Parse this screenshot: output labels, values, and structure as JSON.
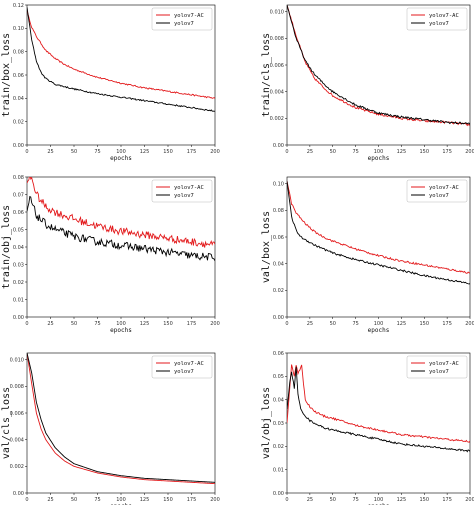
{
  "chart_data": [
    {
      "type": "line",
      "ylabel": "train/box_loss",
      "xlabel": "epochs",
      "xlim": [
        0,
        200
      ],
      "ylim": [
        0,
        0.12
      ],
      "xticks": [
        "0",
        "25",
        "50",
        "75",
        "100",
        "125",
        "150",
        "175",
        "200"
      ],
      "yticks": [
        "0.00",
        "0.02",
        "0.04",
        "0.06",
        "0.08",
        "0.10",
        "0.12"
      ],
      "legend_position": "top-right",
      "noise": 0.0006,
      "series": [
        {
          "name": "yolov7-AC",
          "color": "#e31a1c",
          "x": [
            0,
            5,
            10,
            20,
            30,
            40,
            50,
            75,
            100,
            125,
            150,
            175,
            200
          ],
          "y": [
            0.115,
            0.101,
            0.093,
            0.081,
            0.074,
            0.069,
            0.065,
            0.058,
            0.053,
            0.049,
            0.046,
            0.043,
            0.04
          ]
        },
        {
          "name": "yolov7",
          "color": "#000000",
          "x": [
            0,
            5,
            10,
            15,
            20,
            30,
            40,
            50,
            75,
            100,
            125,
            150,
            175,
            200
          ],
          "y": [
            0.118,
            0.09,
            0.072,
            0.062,
            0.057,
            0.052,
            0.05,
            0.048,
            0.044,
            0.041,
            0.038,
            0.035,
            0.032,
            0.029
          ]
        }
      ]
    },
    {
      "type": "line",
      "ylabel": "train/cls_loss",
      "xlabel": "epochs",
      "xlim": [
        0,
        200
      ],
      "ylim": [
        0,
        0.0105
      ],
      "xticks": [
        "0",
        "25",
        "50",
        "75",
        "100",
        "125",
        "150",
        "175",
        "200"
      ],
      "yticks": [
        "0.00",
        "0.002",
        "0.004",
        "0.006",
        "0.008",
        "0.010"
      ],
      "legend_position": "top-right",
      "noise": 8e-05,
      "series": [
        {
          "name": "yolov7-AC",
          "color": "#e31a1c",
          "x": [
            0,
            10,
            20,
            30,
            40,
            50,
            75,
            100,
            125,
            150,
            175,
            200
          ],
          "y": [
            0.0105,
            0.0082,
            0.0062,
            0.005,
            0.0043,
            0.0037,
            0.0028,
            0.0023,
            0.002,
            0.0018,
            0.0017,
            0.0015
          ]
        },
        {
          "name": "yolov7",
          "color": "#000000",
          "x": [
            0,
            10,
            20,
            30,
            40,
            50,
            75,
            100,
            125,
            150,
            175,
            200
          ],
          "y": [
            0.0105,
            0.008,
            0.0063,
            0.0053,
            0.0046,
            0.004,
            0.003,
            0.0024,
            0.0021,
            0.0019,
            0.0017,
            0.0016
          ]
        }
      ]
    },
    {
      "type": "line",
      "ylabel": "train/obj_loss",
      "xlabel": "epochs",
      "xlim": [
        0,
        200
      ],
      "ylim": [
        0,
        0.08
      ],
      "xticks": [
        "0",
        "25",
        "50",
        "75",
        "100",
        "125",
        "150",
        "175",
        "200"
      ],
      "yticks": [
        "0.00",
        "0.01",
        "0.02",
        "0.03",
        "0.04",
        "0.05",
        "0.06",
        "0.07",
        "0.08"
      ],
      "legend_position": "top-right",
      "noise": 0.0022,
      "series": [
        {
          "name": "yolov7-AC",
          "color": "#e31a1c",
          "x": [
            0,
            3,
            6,
            10,
            20,
            30,
            50,
            75,
            100,
            125,
            150,
            175,
            200
          ],
          "y": [
            0.076,
            0.08,
            0.078,
            0.07,
            0.063,
            0.06,
            0.056,
            0.052,
            0.049,
            0.047,
            0.045,
            0.043,
            0.041
          ]
        },
        {
          "name": "yolov7",
          "color": "#000000",
          "x": [
            0,
            3,
            6,
            10,
            20,
            30,
            50,
            75,
            100,
            125,
            150,
            175,
            200
          ],
          "y": [
            0.06,
            0.068,
            0.064,
            0.058,
            0.053,
            0.05,
            0.046,
            0.043,
            0.041,
            0.039,
            0.037,
            0.035,
            0.034
          ]
        }
      ]
    },
    {
      "type": "line",
      "ylabel": "val/box_loss",
      "xlabel": "epochs",
      "xlim": [
        0,
        200
      ],
      "ylim": [
        0,
        0.105
      ],
      "xticks": [
        "0",
        "25",
        "50",
        "75",
        "100",
        "125",
        "150",
        "175",
        "200"
      ],
      "yticks": [
        "0.00",
        "0.02",
        "0.04",
        "0.06",
        "0.08",
        "0.10"
      ],
      "legend_position": "top-right",
      "noise": 0.0007,
      "series": [
        {
          "name": "yolov7-AC",
          "color": "#e31a1c",
          "x": [
            0,
            5,
            10,
            20,
            30,
            40,
            50,
            75,
            100,
            125,
            150,
            175,
            200
          ],
          "y": [
            0.102,
            0.085,
            0.078,
            0.07,
            0.064,
            0.06,
            0.057,
            0.051,
            0.046,
            0.042,
            0.039,
            0.036,
            0.033
          ]
        },
        {
          "name": "yolov7",
          "color": "#000000",
          "x": [
            0,
            5,
            10,
            15,
            20,
            30,
            40,
            50,
            75,
            100,
            125,
            150,
            175,
            200
          ],
          "y": [
            0.102,
            0.075,
            0.065,
            0.06,
            0.058,
            0.054,
            0.051,
            0.048,
            0.043,
            0.039,
            0.035,
            0.031,
            0.028,
            0.025
          ]
        }
      ]
    },
    {
      "type": "line",
      "ylabel": "val/cls_loss",
      "xlabel": "epochs",
      "xlim": [
        0,
        200
      ],
      "ylim": [
        0,
        0.0105
      ],
      "xticks": [
        "0",
        "25",
        "50",
        "75",
        "100",
        "125",
        "150",
        "175",
        "200"
      ],
      "yticks": [
        "0.00",
        "0.002",
        "0.004",
        "0.006",
        "0.008",
        "0.010"
      ],
      "legend_position": "top-right",
      "noise": 0.0,
      "series": [
        {
          "name": "yolov7-AC",
          "color": "#e31a1c",
          "x": [
            0,
            5,
            10,
            15,
            20,
            30,
            40,
            50,
            75,
            100,
            125,
            150,
            175,
            200
          ],
          "y": [
            0.0105,
            0.0082,
            0.006,
            0.0048,
            0.004,
            0.003,
            0.0024,
            0.002,
            0.0015,
            0.0012,
            0.001,
            0.0009,
            0.0008,
            0.0007
          ]
        },
        {
          "name": "yolov7",
          "color": "#000000",
          "x": [
            0,
            5,
            10,
            15,
            20,
            30,
            40,
            50,
            75,
            100,
            125,
            150,
            175,
            200
          ],
          "y": [
            0.0105,
            0.009,
            0.0068,
            0.0055,
            0.0045,
            0.0034,
            0.0027,
            0.0022,
            0.0016,
            0.0013,
            0.0011,
            0.001,
            0.0009,
            0.0008
          ]
        }
      ]
    },
    {
      "type": "line",
      "ylabel": "val/obj_loss",
      "xlabel": "epochs",
      "xlim": [
        0,
        200
      ],
      "ylim": [
        0,
        0.06
      ],
      "xticks": [
        "0",
        "25",
        "50",
        "75",
        "100",
        "125",
        "150",
        "175",
        "200"
      ],
      "yticks": [
        "0.00",
        "0.01",
        "0.02",
        "0.03",
        "0.04",
        "0.05",
        "0.06"
      ],
      "legend_position": "top-right",
      "noise": 0.0004,
      "series": [
        {
          "name": "yolov7-AC",
          "color": "#e31a1c",
          "x": [
            0,
            3,
            5,
            8,
            10,
            12,
            14,
            16,
            18,
            20,
            25,
            30,
            40,
            50,
            75,
            100,
            125,
            150,
            175,
            200
          ],
          "y": [
            0.03,
            0.045,
            0.055,
            0.05,
            0.055,
            0.051,
            0.053,
            0.055,
            0.047,
            0.04,
            0.037,
            0.035,
            0.033,
            0.032,
            0.029,
            0.027,
            0.025,
            0.024,
            0.023,
            0.022
          ]
        },
        {
          "name": "yolov7",
          "color": "#000000",
          "x": [
            0,
            3,
            5,
            8,
            10,
            12,
            15,
            20,
            25,
            30,
            40,
            50,
            75,
            100,
            125,
            150,
            175,
            200
          ],
          "y": [
            0.036,
            0.047,
            0.052,
            0.045,
            0.054,
            0.042,
            0.036,
            0.033,
            0.031,
            0.03,
            0.028,
            0.027,
            0.025,
            0.023,
            0.021,
            0.02,
            0.019,
            0.018
          ]
        }
      ]
    }
  ]
}
